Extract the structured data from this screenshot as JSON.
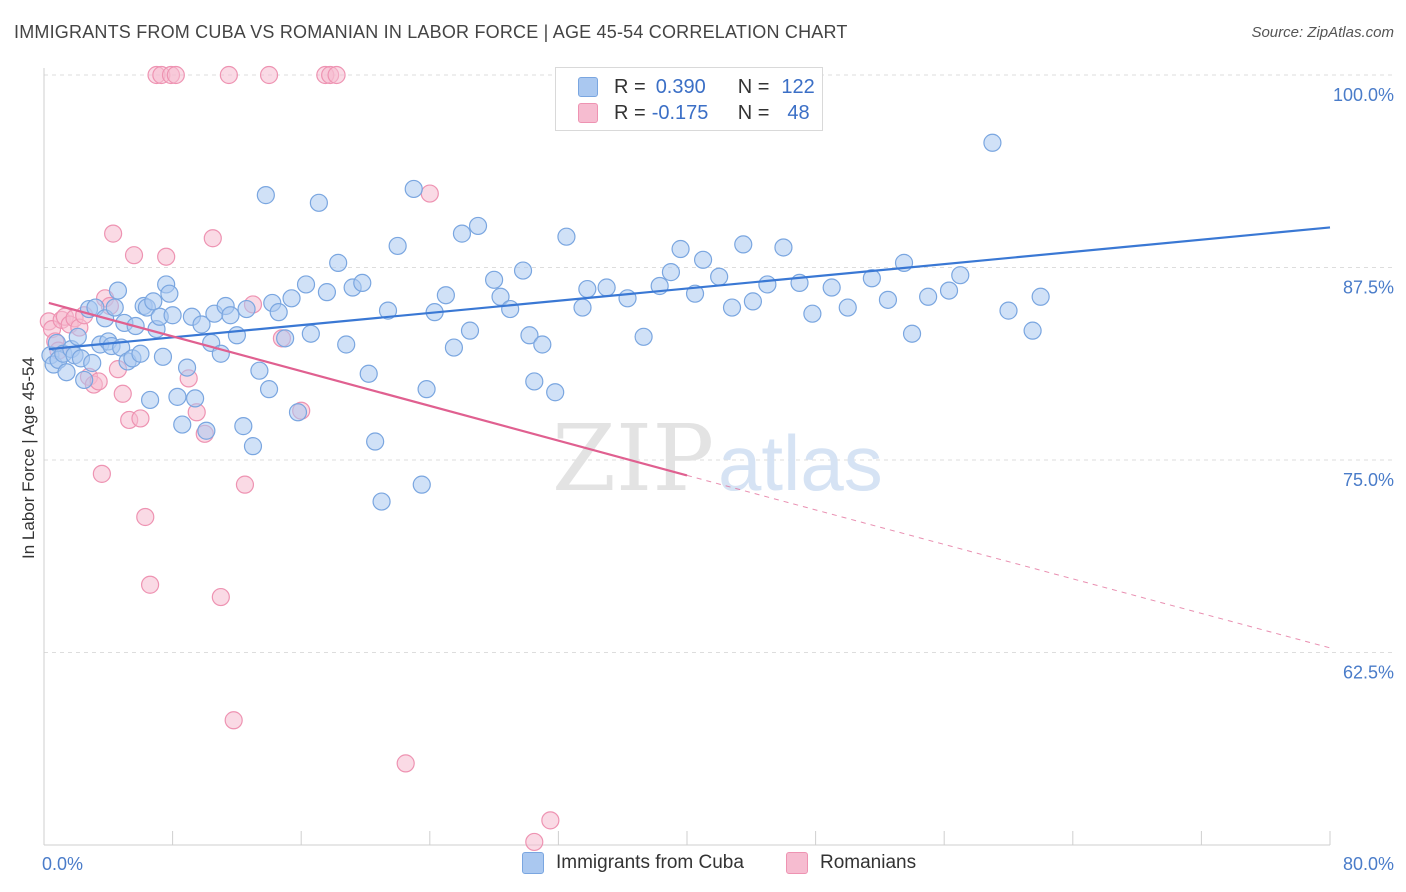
{
  "header": {
    "title": "IMMIGRANTS FROM CUBA VS ROMANIAN IN LABOR FORCE | AGE 45-54 CORRELATION CHART",
    "source": "Source: ZipAtlas.com"
  },
  "watermark": {
    "zip": "ZIP",
    "atlas": "atlas"
  },
  "legend": {
    "r_label": "R =",
    "n_label": "N =",
    "rows": [
      {
        "r": "0.390",
        "n": "122"
      },
      {
        "r": "-0.175",
        "n": "48"
      }
    ]
  },
  "colors": {
    "blue_fill": "#aac8f0",
    "blue_stroke": "#7aa6e0",
    "blue_line": "#3a78d4",
    "pink_fill": "#f6bcd0",
    "pink_stroke": "#ee93b2",
    "pink_line": "#e06090",
    "axis_text": "#4a7cc9",
    "grid": "#dddddd"
  },
  "chart_data": {
    "type": "scatter",
    "xlabel": "",
    "ylabel": "In Labor Force | Age 45-54",
    "xlim": [
      0,
      80
    ],
    "ylim": [
      50,
      100
    ],
    "x_tick_labels": [
      {
        "value": 0,
        "label": "0.0%"
      },
      {
        "value": 80,
        "label": "80.0%"
      }
    ],
    "y_tick_labels": [
      {
        "value": 100,
        "label": "100.0%"
      },
      {
        "value": 87.5,
        "label": "87.5%"
      },
      {
        "value": 75,
        "label": "75.0%"
      },
      {
        "value": 62.5,
        "label": "62.5%"
      }
    ],
    "grid": "horizontal dashed",
    "legend_position": "top-center",
    "series": [
      {
        "name": "Immigrants from Cuba",
        "color": "#aac8f0",
        "trend": {
          "x": [
            0.3,
            80
          ],
          "y": [
            82.2,
            90.1
          ]
        },
        "points": [
          [
            0.4,
            81.8
          ],
          [
            0.6,
            81.2
          ],
          [
            0.8,
            82.6
          ],
          [
            0.9,
            81.5
          ],
          [
            1.2,
            81.9
          ],
          [
            1.4,
            80.7
          ],
          [
            1.7,
            82.2
          ],
          [
            1.9,
            81.8
          ],
          [
            2.1,
            83.0
          ],
          [
            2.3,
            81.6
          ],
          [
            2.5,
            80.2
          ],
          [
            2.8,
            84.8
          ],
          [
            3.0,
            81.3
          ],
          [
            3.2,
            84.9
          ],
          [
            3.5,
            82.5
          ],
          [
            3.8,
            84.2
          ],
          [
            4.0,
            82.7
          ],
          [
            4.2,
            82.4
          ],
          [
            4.4,
            84.9
          ],
          [
            4.6,
            86.0
          ],
          [
            4.8,
            82.3
          ],
          [
            5.0,
            83.9
          ],
          [
            5.2,
            81.4
          ],
          [
            5.5,
            81.6
          ],
          [
            5.7,
            83.7
          ],
          [
            6.0,
            81.9
          ],
          [
            6.2,
            85.0
          ],
          [
            6.4,
            84.9
          ],
          [
            6.6,
            78.9
          ],
          [
            6.8,
            85.3
          ],
          [
            7.0,
            83.5
          ],
          [
            7.2,
            84.3
          ],
          [
            7.4,
            81.7
          ],
          [
            7.6,
            86.4
          ],
          [
            7.8,
            85.8
          ],
          [
            8.0,
            84.4
          ],
          [
            8.3,
            79.1
          ],
          [
            8.6,
            77.3
          ],
          [
            8.9,
            81.0
          ],
          [
            9.2,
            84.3
          ],
          [
            9.4,
            79.0
          ],
          [
            9.8,
            83.8
          ],
          [
            10.1,
            76.9
          ],
          [
            10.4,
            82.6
          ],
          [
            10.6,
            84.5
          ],
          [
            11.0,
            81.9
          ],
          [
            11.3,
            85.0
          ],
          [
            11.6,
            84.4
          ],
          [
            12.0,
            83.1
          ],
          [
            12.4,
            77.2
          ],
          [
            12.6,
            84.8
          ],
          [
            13.0,
            75.9
          ],
          [
            13.4,
            80.8
          ],
          [
            13.8,
            92.2
          ],
          [
            14.0,
            79.6
          ],
          [
            14.2,
            85.2
          ],
          [
            14.6,
            84.6
          ],
          [
            15.0,
            82.9
          ],
          [
            15.4,
            85.5
          ],
          [
            15.8,
            78.1
          ],
          [
            16.3,
            86.4
          ],
          [
            16.6,
            83.2
          ],
          [
            17.1,
            91.7
          ],
          [
            17.6,
            85.9
          ],
          [
            18.3,
            87.8
          ],
          [
            18.8,
            82.5
          ],
          [
            19.2,
            86.2
          ],
          [
            19.8,
            86.5
          ],
          [
            20.2,
            80.6
          ],
          [
            20.6,
            76.2
          ],
          [
            21.0,
            72.3
          ],
          [
            21.4,
            84.7
          ],
          [
            22.0,
            88.9
          ],
          [
            23.0,
            92.6
          ],
          [
            23.5,
            73.4
          ],
          [
            23.8,
            79.6
          ],
          [
            24.3,
            84.6
          ],
          [
            25.0,
            85.7
          ],
          [
            25.5,
            82.3
          ],
          [
            26.0,
            89.7
          ],
          [
            26.5,
            83.4
          ],
          [
            27.0,
            90.2
          ],
          [
            28.0,
            86.7
          ],
          [
            28.4,
            85.6
          ],
          [
            29.0,
            84.8
          ],
          [
            29.8,
            87.3
          ],
          [
            30.2,
            83.1
          ],
          [
            30.5,
            80.1
          ],
          [
            31.0,
            82.5
          ],
          [
            31.8,
            79.4
          ],
          [
            32.5,
            89.5
          ],
          [
            33.5,
            84.9
          ],
          [
            33.8,
            86.1
          ],
          [
            35.0,
            86.2
          ],
          [
            36.3,
            85.5
          ],
          [
            37.3,
            83.0
          ],
          [
            38.3,
            86.3
          ],
          [
            39.0,
            87.2
          ],
          [
            39.6,
            88.7
          ],
          [
            40.5,
            85.8
          ],
          [
            41.0,
            88.0
          ],
          [
            42.0,
            86.9
          ],
          [
            42.8,
            84.9
          ],
          [
            43.5,
            89.0
          ],
          [
            44.1,
            85.3
          ],
          [
            45.0,
            86.4
          ],
          [
            46.0,
            88.8
          ],
          [
            47.0,
            86.5
          ],
          [
            47.8,
            84.5
          ],
          [
            49.0,
            86.2
          ],
          [
            50.0,
            84.9
          ],
          [
            51.5,
            86.8
          ],
          [
            52.5,
            85.4
          ],
          [
            53.5,
            87.8
          ],
          [
            54.0,
            83.2
          ],
          [
            55.0,
            85.6
          ],
          [
            56.3,
            86.0
          ],
          [
            57.0,
            87.0
          ],
          [
            59.0,
            95.6
          ],
          [
            60.0,
            84.7
          ],
          [
            61.5,
            83.4
          ],
          [
            62.0,
            85.6
          ]
        ]
      },
      {
        "name": "Romanians",
        "color": "#f6bcd0",
        "trend": {
          "x": [
            0.3,
            40
          ],
          "y": [
            85.2,
            74.0
          ]
        },
        "trend_extension": {
          "x": [
            40,
            80
          ],
          "y": [
            74.0,
            62.8
          ]
        },
        "points": [
          [
            0.3,
            84.0
          ],
          [
            0.5,
            83.5
          ],
          [
            0.7,
            82.7
          ],
          [
            0.9,
            82.1
          ],
          [
            1.1,
            84.1
          ],
          [
            1.3,
            84.3
          ],
          [
            1.6,
            83.8
          ],
          [
            1.9,
            84.2
          ],
          [
            2.2,
            83.6
          ],
          [
            2.5,
            84.4
          ],
          [
            2.8,
            80.4
          ],
          [
            3.1,
            79.9
          ],
          [
            3.4,
            80.1
          ],
          [
            3.6,
            74.1
          ],
          [
            3.8,
            85.5
          ],
          [
            4.1,
            85.0
          ],
          [
            4.3,
            89.7
          ],
          [
            4.6,
            80.9
          ],
          [
            4.9,
            79.3
          ],
          [
            5.3,
            77.6
          ],
          [
            5.6,
            88.3
          ],
          [
            6.0,
            77.7
          ],
          [
            6.3,
            71.3
          ],
          [
            6.6,
            66.9
          ],
          [
            7.0,
            100.0
          ],
          [
            7.3,
            100.0
          ],
          [
            7.6,
            88.2
          ],
          [
            7.9,
            100.0
          ],
          [
            8.2,
            100.0
          ],
          [
            9.0,
            80.3
          ],
          [
            9.5,
            78.1
          ],
          [
            10.0,
            76.7
          ],
          [
            10.5,
            89.4
          ],
          [
            11.0,
            66.1
          ],
          [
            11.5,
            100.0
          ],
          [
            11.8,
            58.1
          ],
          [
            12.5,
            73.4
          ],
          [
            13.0,
            85.1
          ],
          [
            14.0,
            100.0
          ],
          [
            14.8,
            82.9
          ],
          [
            16.0,
            78.2
          ],
          [
            17.5,
            100.0
          ],
          [
            17.8,
            100.0
          ],
          [
            18.2,
            100.0
          ],
          [
            22.5,
            55.3
          ],
          [
            24.0,
            92.3
          ],
          [
            30.5,
            50.2
          ],
          [
            31.5,
            51.6
          ]
        ]
      }
    ]
  }
}
